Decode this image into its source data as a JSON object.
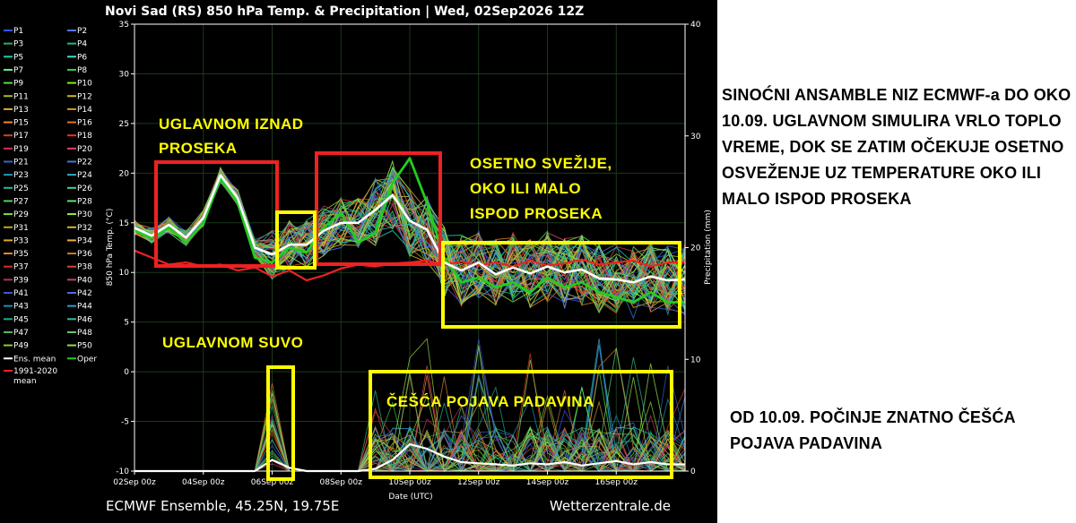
{
  "title": "Novi Sad  (RS)  850 hPa Temp. & Precipitation | Wed, 02Sep2026 12Z",
  "footer_left": "ECMWF Ensemble, 45.25N, 19.75E",
  "footer_right": "Wetterzentrale.de",
  "legend": {
    "members": [
      "P1",
      "P2",
      "P3",
      "P4",
      "P5",
      "P6",
      "P7",
      "P8",
      "P9",
      "P10",
      "P11",
      "P12",
      "P13",
      "P14",
      "P15",
      "P16",
      "P17",
      "P18",
      "P19",
      "P20",
      "P21",
      "P22",
      "P23",
      "P24",
      "P25",
      "P26",
      "P27",
      "P28",
      "P29",
      "P30",
      "P31",
      "P32",
      "P33",
      "P34",
      "P35",
      "P36",
      "P37",
      "P38",
      "P39",
      "P40",
      "P41",
      "P42",
      "P43",
      "P44",
      "P45",
      "P46",
      "P47",
      "P48",
      "P49",
      "P50"
    ],
    "member_colors": [
      "#3355ee",
      "#5577ff",
      "#33aa66",
      "#22bb77",
      "#22ccaa",
      "#44ddcc",
      "#66ee88",
      "#33cc55",
      "#55dd44",
      "#77ee22",
      "#aabb33",
      "#ccbb22",
      "#ddaa44",
      "#cc9933",
      "#ee8833",
      "#dd7722",
      "#cc4433",
      "#ee3322",
      "#cc3355",
      "#dd4466",
      "#3366cc",
      "#4477dd",
      "#2299bb",
      "#33aacc",
      "#22bb99",
      "#44ccaa",
      "#55cc66",
      "#66dd77",
      "#88dd33",
      "#99ee44",
      "#bbaa22",
      "#ccbb33",
      "#ddaa33",
      "#eeaa44",
      "#dd8844",
      "#cc7733",
      "#cc3322",
      "#dd4433",
      "#aa3366",
      "#bb4477",
      "#4455cc",
      "#5566dd",
      "#2288bb",
      "#3399cc",
      "#22aa88",
      "#33bb99",
      "#55bb55",
      "#66cc66",
      "#88cc33",
      "#99dd44"
    ],
    "ens_mean": "Ens. mean",
    "oper": "Oper",
    "climate_line1": "1991-2020",
    "climate_line2": "mean"
  },
  "annotations": {
    "above_avg_1": "UGLAVNOM IZNAD",
    "above_avg_2": "PROSEKA",
    "mostly_dry": "UGLAVNOM SUVO",
    "cooler_1": "OSETNO SVEŽIJE,",
    "cooler_2": "OKO ILI MALO",
    "cooler_3": "ISPOD PROSEKA",
    "precip_more": "ČEŠĆA POJAVA PADAVINA"
  },
  "commentary_top": "SINOĆNI ANSAMBLE NIZ ECMWF-a DO OKO 10.09. UGLAVNOM SIMULIRA VRLO TOPLO VREME, DOK SE ZATIM OČEKUJE OSETNO OSVEŽENJE UZ TEMPERATURE OKO ILI MALO ISPOD PROSEKA",
  "commentary_bottom": "OD 10.09. POČINJE ZNATNO ČEŠĆA POJAVA PADAVINA",
  "colors": {
    "background": "#000000",
    "frame": "#ffffff",
    "grid": "#1a3a1a",
    "ens_mean": "#ffffff",
    "oper": "#22cc22",
    "climate": "#ee2222",
    "box_red": "#ee2222",
    "box_yellow": "#ffff00",
    "annotation": "#ffff00"
  },
  "chart_data": {
    "type": "line",
    "x": [
      "02Sep 00z",
      "02Sep 12z",
      "03Sep 00z",
      "03Sep 12z",
      "04Sep 00z",
      "04Sep 12z",
      "05Sep 00z",
      "05Sep 12z",
      "06Sep 00z",
      "06Sep 12z",
      "07Sep 00z",
      "07Sep 12z",
      "08Sep 00z",
      "08Sep 12z",
      "09Sep 00z",
      "09Sep 12z",
      "10Sep 00z",
      "10Sep 12z",
      "11Sep 00z",
      "11Sep 12z",
      "12Sep 00z",
      "12Sep 12z",
      "13Sep 00z",
      "13Sep 12z",
      "14Sep 00z",
      "14Sep 12z",
      "15Sep 00z",
      "15Sep 12z",
      "16Sep 00z",
      "16Sep 12z",
      "17Sep 00z",
      "17Sep 12z",
      "18Sep 00z"
    ],
    "x_tick_labels": [
      "02Sep 00z",
      "04Sep 00z",
      "06Sep 00z",
      "08Sep 00z",
      "10Sep 00z",
      "12Sep 00z",
      "14Sep 00z",
      "16Sep 00z"
    ],
    "xlabel": "Date (UTC)",
    "ylabel": "850 hPa Temp. (°C)",
    "y2label": "Precipitation (mm)",
    "ylim": [
      -10,
      35
    ],
    "y2lim": [
      0,
      40
    ],
    "y_ticks": [
      -10,
      -5,
      0,
      5,
      10,
      15,
      20,
      25,
      30,
      35
    ],
    "y2_ticks": [
      0,
      10,
      20,
      30,
      40
    ],
    "grid": true,
    "legend_position": "left",
    "series": [
      {
        "name": "Ens. mean",
        "axis": "temp",
        "values": [
          14.5,
          13.7,
          14.8,
          13.5,
          15.5,
          19.8,
          17.5,
          12.5,
          11.8,
          12.8,
          12.8,
          14.2,
          15.0,
          15.0,
          16.3,
          17.8,
          15.2,
          14.3,
          11.0,
          10.2,
          11.0,
          9.8,
          10.5,
          9.9,
          10.6,
          10.0,
          10.3,
          9.4,
          9.3,
          9.0,
          9.6,
          9.2,
          9.3
        ]
      },
      {
        "name": "Oper",
        "axis": "temp",
        "values": [
          14.2,
          13.5,
          14.5,
          13.0,
          15.0,
          19.5,
          17.0,
          11.5,
          11.0,
          12.5,
          12.0,
          14.5,
          16.0,
          13.0,
          14.0,
          19.0,
          21.5,
          17.0,
          11.5,
          9.0,
          9.5,
          8.5,
          9.0,
          8.0,
          9.5,
          8.5,
          9.0,
          8.0,
          7.5,
          7.0,
          8.0,
          7.0,
          7.0
        ]
      },
      {
        "name": "1991-2020 mean",
        "axis": "temp",
        "values": [
          12.2,
          11.5,
          10.8,
          11.0,
          10.6,
          10.8,
          10.2,
          10.5,
          9.6,
          10.2,
          9.2,
          9.7,
          10.4,
          10.8,
          10.6,
          10.9,
          11.0,
          11.2,
          10.8,
          11.1,
          10.7,
          11.0,
          10.6,
          11.2,
          10.7,
          10.9,
          11.3,
          10.8,
          11.0,
          11.2,
          10.6,
          11.0,
          11.0
        ]
      },
      {
        "name": "Ens. mean precipitation",
        "axis": "precip",
        "values": [
          0,
          0,
          0,
          0,
          0,
          0,
          0,
          0,
          1.0,
          0.3,
          0,
          0,
          0,
          0,
          0.2,
          1.0,
          2.4,
          2.0,
          1.3,
          0.8,
          0.7,
          0.6,
          0.5,
          0.7,
          0.6,
          0.8,
          0.5,
          0.7,
          0.9,
          0.6,
          0.8,
          0.6,
          0.6
        ]
      }
    ]
  }
}
